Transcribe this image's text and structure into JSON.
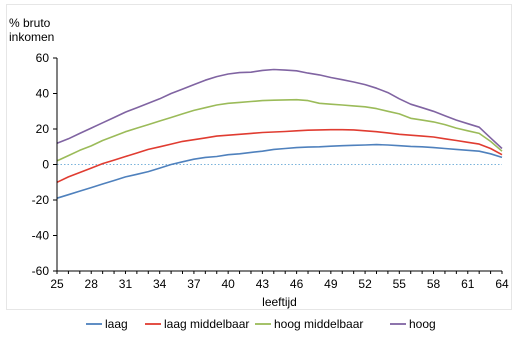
{
  "chart_data": {
    "type": "line",
    "ylabel": [
      "% bruto",
      "inkomen"
    ],
    "xlabel": "leeftijd",
    "xlim": [
      25,
      64
    ],
    "ylim": [
      -60,
      60
    ],
    "x_ticks": [
      25,
      28,
      31,
      34,
      37,
      40,
      43,
      46,
      49,
      52,
      55,
      58,
      61,
      64
    ],
    "y_ticks": [
      -60,
      -40,
      -20,
      0,
      20,
      40,
      60
    ],
    "legend_position": "bottom",
    "zero_line": true,
    "x": [
      25,
      26,
      27,
      28,
      29,
      30,
      31,
      32,
      33,
      34,
      35,
      36,
      37,
      38,
      39,
      40,
      41,
      42,
      43,
      44,
      45,
      46,
      47,
      48,
      49,
      50,
      51,
      52,
      53,
      54,
      55,
      56,
      57,
      58,
      59,
      60,
      61,
      62,
      63,
      64
    ],
    "series": [
      {
        "name": "laag",
        "color": "#4f81bd",
        "values": [
          -19,
          -17,
          -15,
          -13,
          -11,
          -9,
          -7,
          -5.5,
          -4,
          -2,
          0,
          1.5,
          3,
          4,
          4.5,
          5.5,
          6,
          6.8,
          7.5,
          8.5,
          9,
          9.5,
          9.8,
          10,
          10.3,
          10.6,
          10.8,
          11,
          11.2,
          11,
          10.6,
          10.2,
          10,
          9.5,
          9,
          8.5,
          8,
          7.5,
          6,
          4
        ]
      },
      {
        "name": "laag middelbaar",
        "color": "#e03c31",
        "values": [
          -10,
          -7,
          -4.5,
          -2,
          0.5,
          2.5,
          4.5,
          6.5,
          8.5,
          10,
          11.5,
          13,
          14,
          15,
          16,
          16.5,
          17,
          17.5,
          18,
          18.3,
          18.6,
          19,
          19.3,
          19.5,
          19.6,
          19.6,
          19.5,
          19,
          18.5,
          17.8,
          17,
          16.5,
          16,
          15.5,
          14.5,
          13.5,
          12.5,
          11.5,
          9,
          5.5
        ]
      },
      {
        "name": "hoog middelbaar",
        "color": "#9bbb59",
        "values": [
          2,
          5,
          8,
          10.5,
          13.5,
          16,
          18.5,
          20.5,
          22.5,
          24.5,
          26.5,
          28.5,
          30.5,
          32,
          33.5,
          34.5,
          35,
          35.5,
          36,
          36.2,
          36.4,
          36.5,
          36,
          34.5,
          34,
          33.5,
          33,
          32.5,
          31.5,
          30,
          28.5,
          26,
          25,
          24,
          22.5,
          20.5,
          19,
          17.5,
          13,
          7.5
        ]
      },
      {
        "name": "hoog",
        "color": "#8064a2",
        "values": [
          12,
          14.5,
          17.5,
          20.5,
          23.5,
          26.5,
          29.5,
          32,
          34.5,
          37,
          40,
          42.5,
          45,
          47.5,
          49.5,
          51,
          51.8,
          52,
          53,
          53.5,
          53.2,
          52.8,
          51.5,
          50.5,
          49,
          47.8,
          46.5,
          45,
          43,
          40.5,
          37,
          34,
          32,
          30,
          27.5,
          25,
          23,
          21,
          15,
          9
        ]
      }
    ]
  }
}
